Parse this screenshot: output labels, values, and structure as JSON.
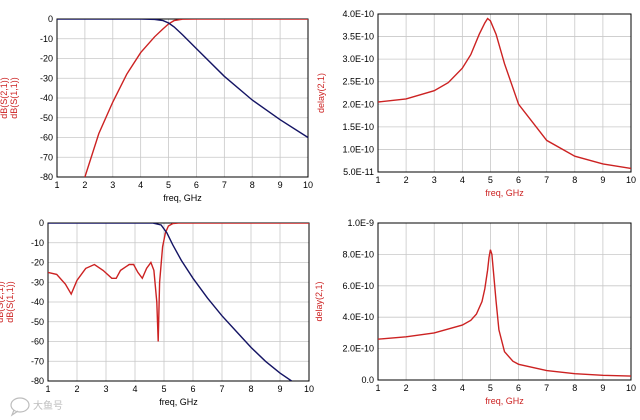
{
  "colors": {
    "red": "#cc2222",
    "blue": "#141464",
    "grid": "#c8c8c8",
    "axis": "#000000"
  },
  "watermark": {
    "text": "大鱼号",
    "icon": "chat-bubble-icon"
  },
  "chart_data": [
    {
      "type": "line",
      "xlabel": "freq, GHz",
      "ylabel_parts": [
        "dB(S(2,1))",
        "dB(S(1,1))"
      ],
      "ylabel_colors": [
        "#cc2222",
        "#cc2222"
      ],
      "xlim": [
        1,
        10
      ],
      "ylim": [
        -80,
        0
      ],
      "xticks": [
        "1",
        "2",
        "3",
        "4",
        "5",
        "6",
        "7",
        "8",
        "9",
        "10"
      ],
      "yticks": [
        "0",
        "-10",
        "-20",
        "-30",
        "-40",
        "-50",
        "-60",
        "-70",
        "-80"
      ],
      "grid": true,
      "series": [
        {
          "color": "#cc2222",
          "x": [
            2.0,
            2.5,
            3.0,
            3.5,
            4.0,
            4.5,
            4.8,
            5.0,
            5.2,
            5.5,
            6.0,
            7.0,
            8.0,
            9.0,
            10.0
          ],
          "y": [
            -80,
            -58,
            -42,
            -28,
            -17,
            -9,
            -5,
            -2.5,
            -0.8,
            -0.1,
            0,
            0,
            0,
            0,
            0
          ]
        },
        {
          "color": "#141464",
          "x": [
            1.0,
            2.0,
            3.0,
            4.0,
            4.5,
            4.8,
            5.0,
            5.2,
            5.5,
            6.0,
            7.0,
            8.0,
            9.0,
            10.0
          ],
          "y": [
            0,
            0,
            0,
            0,
            -0.2,
            -0.8,
            -2,
            -4,
            -8,
            -15,
            -29,
            -41,
            -51,
            -60
          ]
        }
      ]
    },
    {
      "type": "line",
      "xlabel": "freq, GHz",
      "ylabel": "delay(2,1)",
      "xlim": [
        1,
        10
      ],
      "ylim": [
        5e-11,
        4e-10
      ],
      "xticks": [
        "1",
        "2",
        "3",
        "4",
        "5",
        "6",
        "7",
        "8",
        "9",
        "10"
      ],
      "yticks": [
        "4.0E-10",
        "3.5E-10",
        "3.0E-10",
        "2.5E-10",
        "2.0E-10",
        "1.5E-10",
        "1.0E-10",
        "5.0E-11"
      ],
      "grid": true,
      "series": [
        {
          "color": "#cc2222",
          "x": [
            1.0,
            2.0,
            3.0,
            3.5,
            4.0,
            4.3,
            4.6,
            4.8,
            4.9,
            5.0,
            5.2,
            5.5,
            6.0,
            7.0,
            8.0,
            9.0,
            10.0
          ],
          "y": [
            2.05e-10,
            2.12e-10,
            2.3e-10,
            2.48e-10,
            2.8e-10,
            3.1e-10,
            3.55e-10,
            3.8e-10,
            3.9e-10,
            3.85e-10,
            3.55e-10,
            2.9e-10,
            2e-10,
            1.2e-10,
            8.5e-11,
            6.8e-11,
            5.8e-11
          ]
        }
      ]
    },
    {
      "type": "line",
      "xlabel": "freq, GHz",
      "ylabel_parts": [
        "dB(S(2,1))",
        "dB(S(1,1))"
      ],
      "ylabel_colors": [
        "#cc2222",
        "#cc2222"
      ],
      "xlim": [
        1,
        10
      ],
      "ylim": [
        -80,
        0
      ],
      "xticks": [
        "1",
        "2",
        "3",
        "4",
        "5",
        "6",
        "7",
        "8",
        "9",
        "10"
      ],
      "yticks": [
        "0",
        "-10",
        "-20",
        "-30",
        "-40",
        "-50",
        "-60",
        "-70",
        "-80"
      ],
      "grid": true,
      "series": [
        {
          "color": "#cc2222",
          "x": [
            1.0,
            1.3,
            1.6,
            1.8,
            2.0,
            2.3,
            2.6,
            2.9,
            3.2,
            3.35,
            3.5,
            3.8,
            3.95,
            4.1,
            4.25,
            4.4,
            4.55,
            4.65,
            4.75,
            4.8,
            4.85,
            4.95,
            5.05,
            5.15,
            5.3,
            5.5,
            6.0,
            7.0,
            8.0,
            9.0,
            10.0
          ],
          "y": [
            -25,
            -26,
            -31,
            -36,
            -29,
            -23,
            -21,
            -24,
            -28,
            -28,
            -24,
            -21,
            -21,
            -25,
            -28,
            -23,
            -20,
            -24,
            -40,
            -60,
            -30,
            -12,
            -5,
            -1.5,
            -0.3,
            0,
            0,
            0,
            0,
            0,
            0
          ]
        },
        {
          "color": "#141464",
          "x": [
            1.0,
            2.0,
            3.0,
            4.0,
            4.6,
            4.9,
            5.1,
            5.3,
            5.6,
            6.0,
            6.5,
            7.0,
            7.5,
            8.0,
            8.5,
            9.0,
            9.4
          ],
          "y": [
            0,
            0,
            0,
            0,
            0,
            -1,
            -5,
            -11,
            -19,
            -28,
            -38,
            -47,
            -55,
            -63,
            -70,
            -76,
            -80
          ]
        }
      ]
    },
    {
      "type": "line",
      "xlabel": "freq, GHz",
      "ylabel": "delay(2,1)",
      "xlim": [
        1,
        10
      ],
      "ylim": [
        0,
        1e-09
      ],
      "xticks": [
        "1",
        "2",
        "3",
        "4",
        "5",
        "6",
        "7",
        "8",
        "9",
        "10"
      ],
      "yticks": [
        "1.0E-9",
        "8.0E-10",
        "6.0E-10",
        "4.0E-10",
        "2.0E-10",
        "0.0"
      ],
      "grid": true,
      "series": [
        {
          "color": "#cc2222",
          "x": [
            1.0,
            2.0,
            3.0,
            4.0,
            4.3,
            4.5,
            4.7,
            4.8,
            4.9,
            4.95,
            5.0,
            5.05,
            5.1,
            5.2,
            5.3,
            5.5,
            5.8,
            6.0,
            7.0,
            8.0,
            9.0,
            10.0
          ],
          "y": [
            2.6e-10,
            2.75e-10,
            3e-10,
            3.5e-10,
            3.8e-10,
            4.2e-10,
            5e-10,
            5.8e-10,
            7e-10,
            7.8e-10,
            8.3e-10,
            8e-10,
            7e-10,
            5e-10,
            3.2e-10,
            1.8e-10,
            1.2e-10,
            1e-10,
            6e-11,
            4e-11,
            3e-11,
            2.5e-11
          ]
        }
      ]
    }
  ]
}
